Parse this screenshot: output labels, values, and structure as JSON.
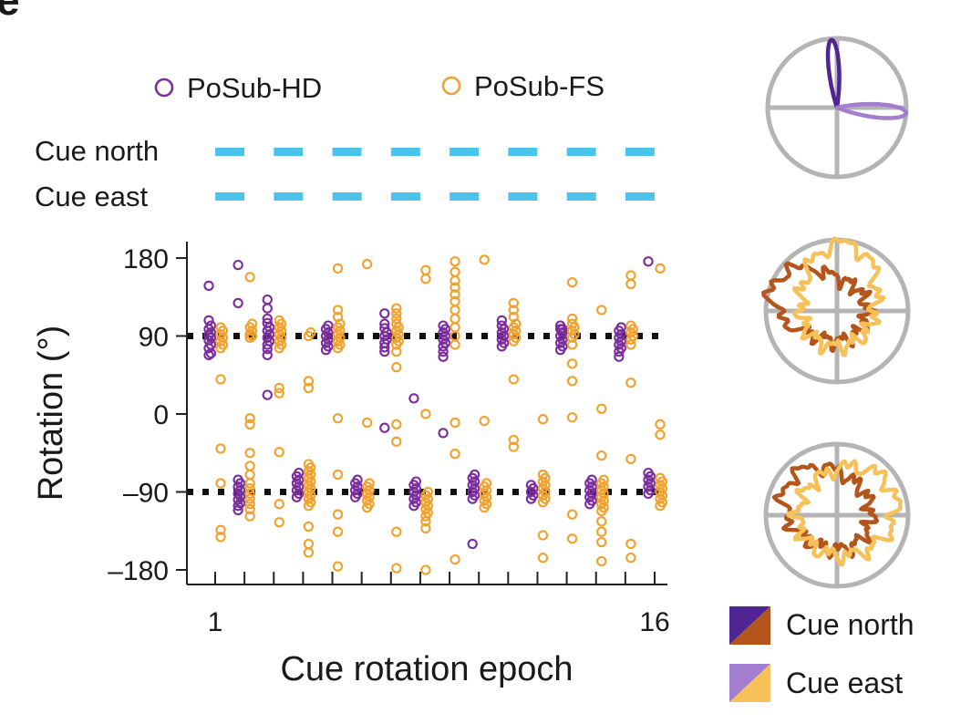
{
  "panel_letter": "e",
  "colors": {
    "hd": "#7b2d9e",
    "fs": "#f0a12e",
    "cue": "#4cc3ec",
    "ref_line": "#111111",
    "axis": "#222222",
    "polar_grid": "#b4b4b4",
    "north_hd": "#4f2591",
    "north_fs": "#b4561c",
    "east_hd": "#a37ed0",
    "east_fs": "#f7c15a"
  },
  "legend": {
    "hd": {
      "label": "PoSub-HD",
      "marker": "open-circle"
    },
    "fs": {
      "label": "PoSub-FS",
      "marker": "open-circle"
    }
  },
  "cues": {
    "north_label": "Cue north",
    "east_label": "Cue east"
  },
  "key": {
    "north_label": "Cue north",
    "east_label": "Cue east"
  },
  "chart_data": {
    "type": "scatter",
    "xlabel": "Cue rotation epoch",
    "ylabel": "Rotation (°)",
    "xlim": [
      1,
      16
    ],
    "ylim": [
      -180,
      180
    ],
    "x_ticks": [
      1,
      2,
      3,
      4,
      5,
      6,
      7,
      8,
      9,
      10,
      11,
      12,
      13,
      14,
      15,
      16
    ],
    "x_tick_labels": [
      {
        "x": 1,
        "label": "1"
      },
      {
        "x": 16,
        "label": "16"
      }
    ],
    "y_ticks": [
      {
        "value": 180,
        "label": "180"
      },
      {
        "value": 90,
        "label": "90"
      },
      {
        "value": 0,
        "label": "0"
      },
      {
        "value": -90,
        "label": "–90"
      },
      {
        "value": -180,
        "label": "–180"
      }
    ],
    "reference_lines": [
      90,
      -90
    ],
    "cue_schedule": {
      "north_epochs": [
        1,
        3,
        5,
        7,
        9,
        11,
        13,
        15
      ],
      "east_epochs": [
        2,
        4,
        6,
        8,
        10,
        12,
        14,
        16
      ]
    },
    "series": [
      {
        "name": "PoSub-HD",
        "points": [
          {
            "epoch": 1,
            "values": [
              148,
              108,
              102,
              98,
              94,
              91,
              88,
              85,
              80,
              76,
              70,
              68
            ]
          },
          {
            "epoch": 2,
            "values": [
              172,
              128,
              -76,
              -80,
              -84,
              -88,
              -92,
              -95,
              -99,
              -103,
              -106,
              -111
            ]
          },
          {
            "epoch": 3,
            "values": [
              132,
              122,
              110,
              105,
              100,
              96,
              92,
              88,
              84,
              80,
              75,
              68,
              22
            ]
          },
          {
            "epoch": 4,
            "values": [
              -68,
              -72,
              -76,
              -80,
              -84,
              -88,
              -92,
              -96
            ]
          },
          {
            "epoch": 5,
            "values": [
              102,
              98,
              94,
              90,
              86,
              82,
              78,
              74
            ]
          },
          {
            "epoch": 6,
            "values": [
              -76,
              -80,
              -84,
              -88,
              -92,
              -96
            ]
          },
          {
            "epoch": 7,
            "values": [
              116,
              104,
              99,
              94,
              90,
              86,
              82,
              77,
              72,
              -16
            ]
          },
          {
            "epoch": 8,
            "values": [
              -78,
              -82,
              -86,
              -90,
              -94,
              -98,
              -102,
              -106,
              18
            ]
          },
          {
            "epoch": 9,
            "values": [
              102,
              98,
              94,
              90,
              86,
              82,
              78,
              72,
              66,
              -22
            ]
          },
          {
            "epoch": 10,
            "values": [
              -70,
              -74,
              -78,
              -82,
              -86,
              -90,
              -94,
              -98,
              -150
            ]
          },
          {
            "epoch": 11,
            "values": [
              108,
              102,
              98,
              94,
              90,
              86,
              82,
              78
            ]
          },
          {
            "epoch": 12,
            "values": [
              -82,
              -86,
              -90,
              -94,
              -98
            ]
          },
          {
            "epoch": 13,
            "values": [
              102,
              98,
              94,
              90,
              86,
              82,
              78,
              74,
              98
            ]
          },
          {
            "epoch": 14,
            "values": [
              -76,
              -80,
              -84,
              -88,
              -92,
              -96,
              -100,
              -104
            ]
          },
          {
            "epoch": 15,
            "values": [
              100,
              96,
              92,
              88,
              84,
              80,
              76,
              72,
              66
            ]
          },
          {
            "epoch": 16,
            "values": [
              176,
              -68,
              -72,
              -76,
              -80,
              -84,
              -88,
              -92
            ]
          }
        ]
      },
      {
        "name": "PoSub-FS",
        "points": [
          {
            "epoch": 1,
            "values": [
              100,
              96,
              92,
              88,
              84,
              80,
              76,
              40,
              -40,
              -80,
              -134,
              -142
            ]
          },
          {
            "epoch": 2,
            "values": [
              158,
              104,
              100,
              96,
              92,
              90,
              88,
              -5,
              -12,
              -45,
              -60,
              -70,
              -80,
              -86,
              -92,
              -98,
              -104,
              -110,
              -118
            ]
          },
          {
            "epoch": 3,
            "values": [
              108,
              104,
              100,
              96,
              92,
              88,
              84,
              80,
              76,
              30,
              24,
              -44,
              -104,
              -125
            ]
          },
          {
            "epoch": 4,
            "values": [
              94,
              90,
              38,
              30,
              -58,
              -62,
              -66,
              -70,
              -74,
              -78,
              -82,
              -86,
              -90,
              -94,
              -98,
              -102,
              -106,
              -130,
              -150,
              -160
            ]
          },
          {
            "epoch": 5,
            "values": [
              168,
              120,
              112,
              104,
              100,
              96,
              92,
              88,
              84,
              80,
              76,
              -5,
              -70,
              -116,
              -136,
              -176
            ]
          },
          {
            "epoch": 6,
            "values": [
              173,
              -10,
              -80,
              -84,
              -88,
              -92,
              -96,
              -100,
              -104,
              -108
            ]
          },
          {
            "epoch": 7,
            "values": [
              122,
              116,
              110,
              104,
              100,
              96,
              92,
              88,
              84,
              80,
              72,
              54,
              -12,
              -32,
              -136,
              -178
            ]
          },
          {
            "epoch": 8,
            "values": [
              166,
              156,
              0,
              -90,
              -94,
              -98,
              -102,
              -106,
              -110,
              -114,
              -118,
              -124,
              -132,
              -180
            ]
          },
          {
            "epoch": 9,
            "values": [
              176,
              164,
              154,
              146,
              138,
              130,
              120,
              110,
              100,
              90,
              80,
              -10,
              -46,
              -168
            ]
          },
          {
            "epoch": 10,
            "values": [
              178,
              -8,
              -80,
              -84,
              -88,
              -92,
              -96,
              -100,
              -104,
              -108
            ]
          },
          {
            "epoch": 11,
            "values": [
              128,
              120,
              112,
              104,
              100,
              96,
              92,
              88,
              84,
              40,
              -30,
              -38
            ]
          },
          {
            "epoch": 12,
            "values": [
              -6,
              -70,
              -74,
              -78,
              -82,
              -86,
              -90,
              -94,
              -98,
              -102,
              -140,
              -166
            ]
          },
          {
            "epoch": 13,
            "values": [
              152,
              110,
              104,
              100,
              96,
              92,
              88,
              80,
              58,
              38,
              -4,
              -116,
              -144
            ]
          },
          {
            "epoch": 14,
            "values": [
              120,
              6,
              -48,
              -76,
              -80,
              -84,
              -88,
              -92,
              -96,
              -100,
              -104,
              -108,
              -112,
              -124,
              -136,
              -148,
              -170
            ]
          },
          {
            "epoch": 15,
            "values": [
              160,
              150,
              102,
              98,
              94,
              90,
              86,
              80,
              36,
              -52,
              -150,
              -166
            ]
          },
          {
            "epoch": 16,
            "values": [
              168,
              -12,
              -24,
              -74,
              -78,
              -82,
              -86,
              -90,
              -94,
              -98,
              -102,
              -106
            ]
          }
        ]
      }
    ]
  }
}
